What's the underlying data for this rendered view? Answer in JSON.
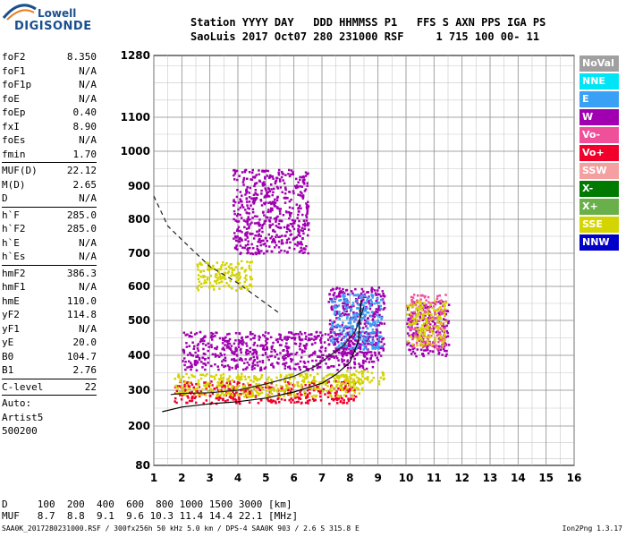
{
  "logo": {
    "top": "Lowell",
    "bottom": "DIGISONDE"
  },
  "header": {
    "line1": "Station YYYY DAY   DDD HHMMSS P1   FFS S AXN PPS IGA PS",
    "line2": "SaoLuis 2017 Oct07 280 231000 RSF     1 715 100 00- 11"
  },
  "params": [
    {
      "k": "foF2",
      "v": "8.350"
    },
    {
      "k": "foF1",
      "v": "N/A"
    },
    {
      "k": "foF1p",
      "v": "N/A"
    },
    {
      "k": "foE",
      "v": "N/A"
    },
    {
      "k": "foEp",
      "v": "0.40"
    },
    {
      "k": "fxI",
      "v": "8.90"
    },
    {
      "k": "foEs",
      "v": "N/A"
    },
    {
      "k": "fmin",
      "v": "1.70"
    },
    {
      "sep": true
    },
    {
      "k": "MUF(D)",
      "v": "22.12"
    },
    {
      "k": "M(D)",
      "v": "2.65"
    },
    {
      "k": "D",
      "v": "N/A"
    },
    {
      "sep": true
    },
    {
      "k": "h`F",
      "v": "285.0"
    },
    {
      "k": "h`F2",
      "v": "285.0"
    },
    {
      "k": "h`E",
      "v": "N/A"
    },
    {
      "k": "h`Es",
      "v": "N/A"
    },
    {
      "sep": true
    },
    {
      "k": "hmF2",
      "v": "386.3"
    },
    {
      "k": "hmF1",
      "v": "N/A"
    },
    {
      "k": "hmE",
      "v": "110.0"
    },
    {
      "k": "yF2",
      "v": "114.8"
    },
    {
      "k": "yF1",
      "v": "N/A"
    },
    {
      "k": "yE",
      "v": "20.0"
    },
    {
      "k": "B0",
      "v": "104.7"
    },
    {
      "k": "B1",
      "v": "2.76"
    },
    {
      "sep": true
    },
    {
      "k": "C-level",
      "v": "22"
    },
    {
      "sep": true
    }
  ],
  "auto": {
    "line1": "Auto:",
    "line2": "Artist5",
    "line3": "500200"
  },
  "legend": [
    {
      "label": "NoVal",
      "color": "#a0a0a0"
    },
    {
      "label": "NNE",
      "color": "#00e5f5"
    },
    {
      "label": "E",
      "color": "#3aa0f5"
    },
    {
      "label": "W",
      "color": "#a000b0"
    },
    {
      "label": "Vo-",
      "color": "#f0509a"
    },
    {
      "label": "Vo+",
      "color": "#f0002a"
    },
    {
      "label": "SSW",
      "color": "#f4a0a0"
    },
    {
      "label": "X-",
      "color": "#007a00"
    },
    {
      "label": "X+",
      "color": "#6ab04a"
    },
    {
      "label": "SSE",
      "color": "#d4d400"
    },
    {
      "label": "NNW",
      "color": "#0000c8"
    }
  ],
  "muf_table": {
    "line1": "D     100  200  400  600  800 1000 1500 3000 [km]",
    "line2": "MUF   8.7  8.8  9.1  9.6 10.3 11.4 14.4 22.1 [MHz]"
  },
  "footer": {
    "file": "SAA0K_2017280231000.RSF / 300fx256h 50 kHz 5.0 km / DPS-4 SAA0K 903 / 2.6 S 315.8 E",
    "version": "Ion2Png 1.3.17"
  },
  "chart_data": {
    "type": "scatter",
    "xlim": [
      1,
      16
    ],
    "ylim": [
      80,
      1280
    ],
    "xticks": [
      1,
      2,
      3,
      4,
      5,
      6,
      7,
      8,
      9,
      10,
      11,
      12,
      13,
      14,
      15,
      16
    ],
    "yticks": [
      80,
      200,
      300,
      400,
      500,
      600,
      700,
      800,
      900,
      1000,
      1100,
      1280
    ],
    "grid": true,
    "legend_position": "right",
    "clusters": [
      {
        "x": [
          1.7,
          8.2
        ],
        "y": [
          265,
          330
        ],
        "color": "Vo+"
      },
      {
        "x": [
          1.7,
          8.5
        ],
        "y": [
          285,
          350
        ],
        "color": "SSE"
      },
      {
        "x": [
          2.0,
          9.0
        ],
        "y": [
          360,
          470
        ],
        "color": "W"
      },
      {
        "x": [
          7.2,
          9.2
        ],
        "y": [
          400,
          600
        ],
        "color": "W"
      },
      {
        "x": [
          7.3,
          9.1
        ],
        "y": [
          420,
          580
        ],
        "color": "E"
      },
      {
        "x": [
          10.0,
          11.5
        ],
        "y": [
          400,
          560
        ],
        "color": "W"
      },
      {
        "x": [
          10.1,
          11.4
        ],
        "y": [
          420,
          580
        ],
        "color": "Vo-"
      },
      {
        "x": [
          10.0,
          11.4
        ],
        "y": [
          430,
          560
        ],
        "color": "SSE"
      },
      {
        "x": [
          7.5,
          9.2
        ],
        "y": [
          320,
          360
        ],
        "color": "SSE"
      },
      {
        "x": [
          2.5,
          4.5
        ],
        "y": [
          590,
          680
        ],
        "color": "SSE"
      },
      {
        "x": [
          3.8,
          6.5
        ],
        "y": [
          700,
          950
        ],
        "color": "W"
      }
    ],
    "profile_curve": {
      "x": [
        1.3,
        2,
        3,
        4,
        5,
        6,
        7,
        7.5,
        8,
        8.3,
        8.4
      ],
      "y": [
        240,
        253,
        262,
        268,
        278,
        295,
        320,
        345,
        380,
        440,
        560
      ]
    },
    "dashed_curve": {
      "x": [
        1,
        1.5,
        2,
        3,
        4,
        5,
        5.5
      ],
      "y": [
        870,
        780,
        740,
        660,
        610,
        550,
        520
      ]
    },
    "trace_curve": {
      "x": [
        1.6,
        2,
        3,
        4,
        5,
        6,
        6.8,
        7.3,
        7.8,
        8.2,
        8.5
      ],
      "y": [
        288,
        291,
        293,
        300,
        318,
        340,
        370,
        400,
        430,
        470,
        540
      ]
    }
  }
}
